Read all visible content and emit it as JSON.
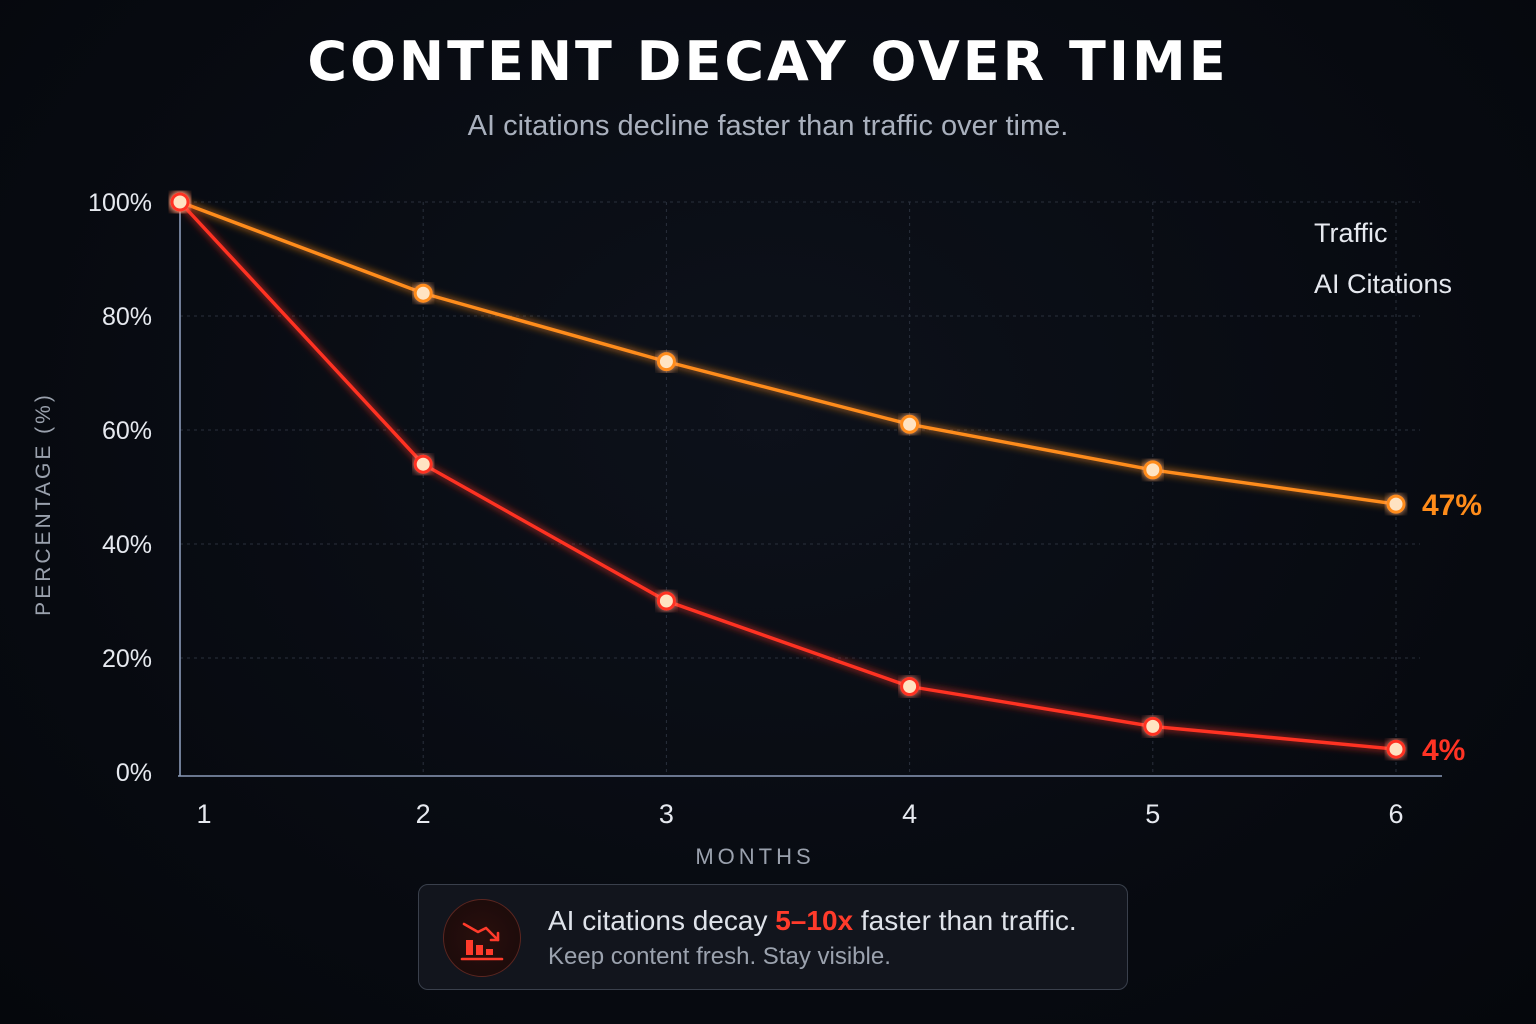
{
  "header": {
    "title": "CONTENT DECAY OVER TIME",
    "subtitle": "AI citations decline faster than traffic over time."
  },
  "chart_data": {
    "type": "line",
    "title": "CONTENT DECAY OVER TIME",
    "subtitle": "AI citations decline faster than traffic over time.",
    "xlabel": "MONTHS",
    "ylabel": "PERCENTAGE (%)",
    "x": [
      1,
      2,
      3,
      4,
      5,
      6
    ],
    "x_tick_labels": [
      "1",
      "2",
      "3",
      "4",
      "5",
      "6"
    ],
    "y_tick_labels": [
      "0%",
      "20%",
      "40%",
      "60%",
      "80%",
      "100%"
    ],
    "ylim": [
      0,
      100
    ],
    "grid": true,
    "legend_position": "top-right",
    "series": [
      {
        "name": "Traffic",
        "color": "#ff8c1a",
        "values": [
          100,
          84,
          72,
          61,
          53,
          47
        ],
        "end_label": "47%"
      },
      {
        "name": "AI Citations",
        "color": "#ff3324",
        "values": [
          100,
          54,
          30,
          15,
          8,
          4
        ],
        "end_label": "4%"
      }
    ]
  },
  "callout": {
    "icon": "declining-bar-chart-icon",
    "text_before": "AI citations decay ",
    "highlight": "5–10x",
    "text_after": " faster than traffic.",
    "subtext": "Keep content fresh. Stay visible."
  },
  "colors": {
    "background": "#070a10",
    "traffic": "#ff8c1a",
    "ai_citations": "#ff3324",
    "axis": "#8a9ab8"
  }
}
